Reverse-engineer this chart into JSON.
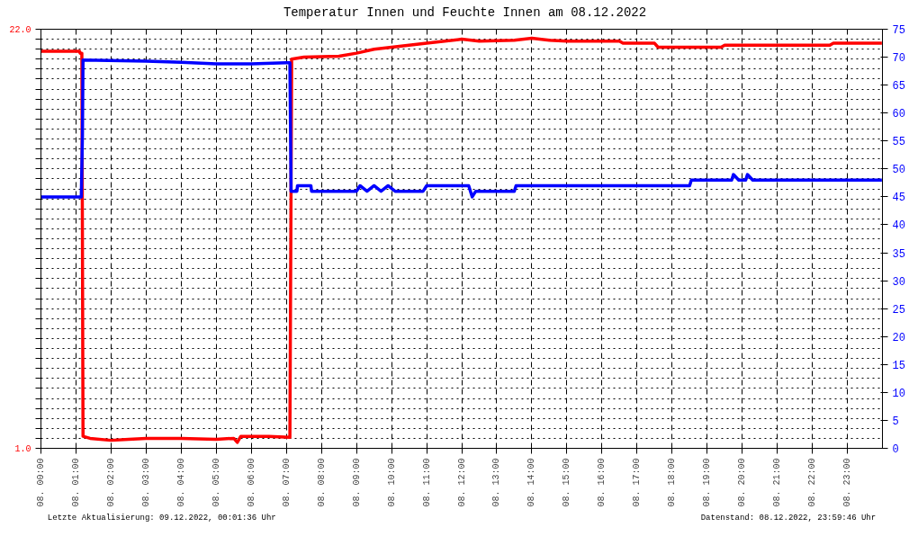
{
  "chart_data": {
    "type": "line",
    "title": "Temperatur Innen und Feuchte Innen am 08.12.2022",
    "annotations": [
      "Letzte Aktualisierung: 09.12.2022, 00:01:36 Uhr",
      "Datenstand: 08.12.2022, 23:59:46 Uhr"
    ],
    "xlim": [
      "2022-12-08T00:00",
      "2022-12-09T00:00"
    ],
    "xticks": [
      {
        "value": "2022-12-08T00:00",
        "label": "08. 00:00"
      },
      {
        "value": "2022-12-08T01:00",
        "label": "08. 01:00"
      },
      {
        "value": "2022-12-08T02:00",
        "label": "08. 02:00"
      },
      {
        "value": "2022-12-08T03:00",
        "label": "08. 03:00"
      },
      {
        "value": "2022-12-08T04:00",
        "label": "08. 04:00"
      },
      {
        "value": "2022-12-08T05:00",
        "label": "08. 05:00"
      },
      {
        "value": "2022-12-08T06:00",
        "label": "08. 06:00"
      },
      {
        "value": "2022-12-08T07:00",
        "label": "08. 07:00"
      },
      {
        "value": "2022-12-08T08:00",
        "label": "08. 08:00"
      },
      {
        "value": "2022-12-08T09:00",
        "label": "08. 09:00"
      },
      {
        "value": "2022-12-08T10:00",
        "label": "08. 10:00"
      },
      {
        "value": "2022-12-08T11:00",
        "label": "08. 11:00"
      },
      {
        "value": "2022-12-08T12:00",
        "label": "08. 12:00"
      },
      {
        "value": "2022-12-08T13:00",
        "label": "08. 13:00"
      },
      {
        "value": "2022-12-08T14:00",
        "label": "08. 14:00"
      },
      {
        "value": "2022-12-08T15:00",
        "label": "08. 15:00"
      },
      {
        "value": "2022-12-08T16:00",
        "label": "08. 16:00"
      },
      {
        "value": "2022-12-08T17:00",
        "label": "08. 17:00"
      },
      {
        "value": "2022-12-08T18:00",
        "label": "08. 18:00"
      },
      {
        "value": "2022-12-08T19:00",
        "label": "08. 19:00"
      },
      {
        "value": "2022-12-08T20:00",
        "label": "08. 20:00"
      },
      {
        "value": "2022-12-08T21:00",
        "label": "08. 21:00"
      },
      {
        "value": "2022-12-08T22:00",
        "label": "08. 22:00"
      },
      {
        "value": "2022-12-08T23:00",
        "label": "08. 23:00"
      }
    ],
    "ylim": [
      1.0,
      22.0
    ],
    "yticks": [
      {
        "value": 1.0,
        "label": "1.0"
      },
      {
        "value": 1.5,
        "label": null
      },
      {
        "value": 2.0,
        "label": null
      },
      {
        "value": 2.5,
        "label": null
      },
      {
        "value": 3.0,
        "label": null
      },
      {
        "value": 3.5,
        "label": null
      },
      {
        "value": 4.0,
        "label": null
      },
      {
        "value": 4.5,
        "label": null
      },
      {
        "value": 5.0,
        "label": null
      },
      {
        "value": 5.5,
        "label": null
      },
      {
        "value": 6.0,
        "label": null
      },
      {
        "value": 6.5,
        "label": null
      },
      {
        "value": 7.0,
        "label": null
      },
      {
        "value": 7.5,
        "label": null
      },
      {
        "value": 8.0,
        "label": null
      },
      {
        "value": 8.5,
        "label": null
      },
      {
        "value": 9.0,
        "label": null
      },
      {
        "value": 9.5,
        "label": null
      },
      {
        "value": 10.0,
        "label": null
      },
      {
        "value": 10.5,
        "label": null
      },
      {
        "value": 11.0,
        "label": null
      },
      {
        "value": 11.5,
        "label": null
      },
      {
        "value": 12.0,
        "label": null
      },
      {
        "value": 12.5,
        "label": null
      },
      {
        "value": 13.0,
        "label": null
      },
      {
        "value": 13.5,
        "label": null
      },
      {
        "value": 14.0,
        "label": null
      },
      {
        "value": 14.5,
        "label": null
      },
      {
        "value": 15.0,
        "label": null
      },
      {
        "value": 15.5,
        "label": null
      },
      {
        "value": 16.0,
        "label": null
      },
      {
        "value": 16.5,
        "label": null
      },
      {
        "value": 17.0,
        "label": null
      },
      {
        "value": 17.5,
        "label": null
      },
      {
        "value": 18.0,
        "label": null
      },
      {
        "value": 18.5,
        "label": null
      },
      {
        "value": 19.0,
        "label": null
      },
      {
        "value": 19.5,
        "label": null
      },
      {
        "value": 20.0,
        "label": null
      },
      {
        "value": 20.5,
        "label": null
      },
      {
        "value": 21.0,
        "label": null
      },
      {
        "value": 21.5,
        "label": null
      },
      {
        "value": 22.0,
        "label": "22.0"
      }
    ],
    "y2lim": [
      0,
      75
    ],
    "y2ticks": [
      0,
      5,
      10,
      15,
      20,
      25,
      30,
      35,
      40,
      45,
      50,
      55,
      60,
      65,
      70,
      75
    ],
    "grid": true,
    "line_style": "solid",
    "series": [
      {
        "color": "#ff0000",
        "axis": "y",
        "x": [
          "2022-12-08T00:00",
          "2022-12-08T01:06",
          "2022-12-08T01:07",
          "2022-12-08T01:10",
          "2022-12-08T01:12",
          "2022-12-08T01:24",
          "2022-12-08T02:00",
          "2022-12-08T02:30",
          "2022-12-08T03:00",
          "2022-12-08T04:00",
          "2022-12-08T05:00",
          "2022-12-08T05:30",
          "2022-12-08T05:36",
          "2022-12-08T05:42",
          "2022-12-08T06:30",
          "2022-12-08T07:06",
          "2022-12-08T07:09",
          "2022-12-08T07:30",
          "2022-12-08T08:30",
          "2022-12-08T09:00",
          "2022-12-08T09:30",
          "2022-12-08T10:00",
          "2022-12-08T11:00",
          "2022-12-08T12:00",
          "2022-12-08T12:30",
          "2022-12-08T13:30",
          "2022-12-08T14:00",
          "2022-12-08T14:30",
          "2022-12-08T15:00",
          "2022-12-08T16:30",
          "2022-12-08T16:36",
          "2022-12-08T17:30",
          "2022-12-08T17:36",
          "2022-12-08T19:24",
          "2022-12-08T19:30",
          "2022-12-08T22:30",
          "2022-12-08T22:36",
          "2022-12-08T23:59"
        ],
        "values": [
          20.9,
          20.9,
          20.8,
          20.8,
          1.6,
          1.5,
          1.4,
          1.45,
          1.5,
          1.5,
          1.45,
          1.5,
          1.3,
          1.6,
          1.6,
          1.55,
          20.5,
          20.6,
          20.65,
          20.8,
          21.0,
          21.1,
          21.3,
          21.5,
          21.4,
          21.45,
          21.55,
          21.45,
          21.4,
          21.4,
          21.3,
          21.3,
          21.1,
          21.1,
          21.2,
          21.2,
          21.3,
          21.3
        ]
      },
      {
        "color": "#0000ff",
        "axis": "y2",
        "x": [
          "2022-12-08T00:00",
          "2022-12-08T01:09",
          "2022-12-08T01:11",
          "2022-12-08T01:12",
          "2022-12-08T03:00",
          "2022-12-08T04:00",
          "2022-12-08T05:00",
          "2022-12-08T06:00",
          "2022-12-08T07:00",
          "2022-12-08T07:06",
          "2022-12-08T07:08",
          "2022-12-08T07:18",
          "2022-12-08T07:19",
          "2022-12-08T07:42",
          "2022-12-08T07:43",
          "2022-12-08T09:00",
          "2022-12-08T09:06",
          "2022-12-08T09:18",
          "2022-12-08T09:30",
          "2022-12-08T09:42",
          "2022-12-08T09:54",
          "2022-12-08T10:06",
          "2022-12-08T10:54",
          "2022-12-08T11:00",
          "2022-12-08T12:12",
          "2022-12-08T12:18",
          "2022-12-08T12:24",
          "2022-12-08T13:30",
          "2022-12-08T13:33",
          "2022-12-08T18:30",
          "2022-12-08T18:33",
          "2022-12-08T19:42",
          "2022-12-08T19:45",
          "2022-12-08T19:54",
          "2022-12-08T20:06",
          "2022-12-08T20:09",
          "2022-12-08T20:18",
          "2022-12-08T23:59"
        ],
        "values": [
          45,
          45,
          56,
          69.5,
          69.3,
          69.1,
          68.8,
          68.8,
          69,
          69,
          46,
          46,
          47,
          47,
          46,
          46,
          47,
          46,
          47,
          46,
          47,
          46,
          46,
          47,
          47,
          45,
          46,
          46,
          47,
          47,
          48,
          48,
          49,
          48,
          48,
          49,
          48,
          48
        ]
      }
    ]
  }
}
